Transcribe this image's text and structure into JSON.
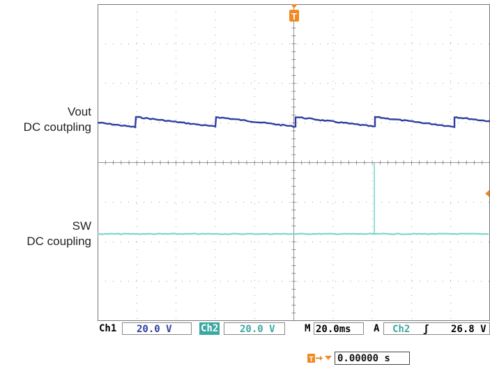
{
  "labels": {
    "ch1_name": "Vout",
    "ch1_coupling": "DC coutpling",
    "ch2_name": "SW",
    "ch2_coupling": "DC coupling"
  },
  "trigger_marker": "T",
  "status_bar": {
    "ch1_label": "Ch1",
    "ch1_scale": "20.0 V",
    "ch2_label": "Ch2",
    "ch2_scale": "20.0 V",
    "timebase_label": "M",
    "timebase": "20.0ms",
    "trigger_mode": "A",
    "trigger_source": "Ch2",
    "trigger_slope": "ʃ",
    "trigger_level": "26.8 V"
  },
  "trigger_position": "0.00000 s",
  "colors": {
    "ch1": "#2c3fa0",
    "ch2": "#6fd4c8",
    "ch2_tag_bg": "#3aa9a0",
    "trigger": "#f08a24",
    "grid": "#777777"
  }
}
